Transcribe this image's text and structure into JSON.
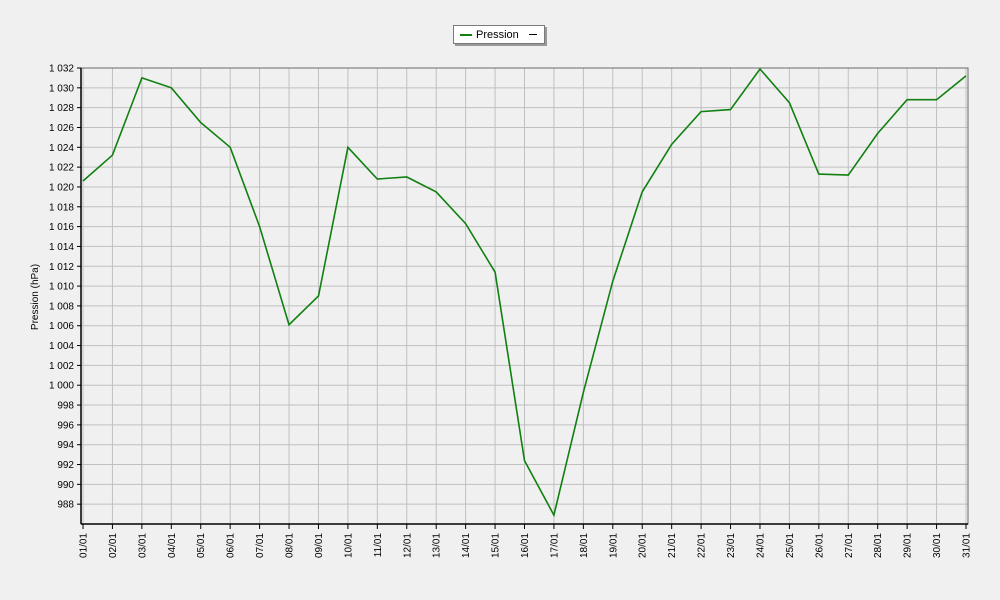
{
  "legend": {
    "series_name": "Pression"
  },
  "chart_data": {
    "type": "line",
    "ylabel": "Pression (hPa)",
    "xlabel": "",
    "ylim": [
      986,
      1032
    ],
    "ytick_step": 2,
    "grid": true,
    "legend_position": "top-center",
    "colors": {
      "line": "#108010",
      "grid": "#c0c0c0",
      "plot_bg": "#f0f0f0",
      "axis": "#000000"
    },
    "categories": [
      "01/01",
      "02/01",
      "03/01",
      "04/01",
      "05/01",
      "06/01",
      "07/01",
      "08/01",
      "09/01",
      "10/01",
      "11/01",
      "12/01",
      "13/01",
      "14/01",
      "15/01",
      "16/01",
      "17/01",
      "18/01",
      "19/01",
      "20/01",
      "21/01",
      "22/01",
      "23/01",
      "24/01",
      "25/01",
      "26/01",
      "27/01",
      "28/01",
      "29/01",
      "30/01",
      "31/01"
    ],
    "series": [
      {
        "name": "Pression",
        "values": [
          1020.6,
          1023.2,
          1031.0,
          1030.0,
          1026.5,
          1024.0,
          1016.0,
          1006.1,
          1009.0,
          1024.0,
          1020.8,
          1021.0,
          1019.5,
          1016.3,
          1011.4,
          992.4,
          986.9,
          999.3,
          1010.5,
          1019.5,
          1024.3,
          1027.6,
          1027.8,
          1031.9,
          1028.5,
          1021.3,
          1021.2,
          1025.4,
          1028.8,
          1028.8,
          1031.2
        ]
      }
    ],
    "yticklabels": [
      "988",
      "990",
      "992",
      "994",
      "996",
      "998",
      "1 000",
      "1 002",
      "1 004",
      "1 006",
      "1 008",
      "1 010",
      "1 012",
      "1 014",
      "1 016",
      "1 018",
      "1 020",
      "1 022",
      "1 024",
      "1 026",
      "1 028",
      "1 030",
      "1 032"
    ]
  }
}
